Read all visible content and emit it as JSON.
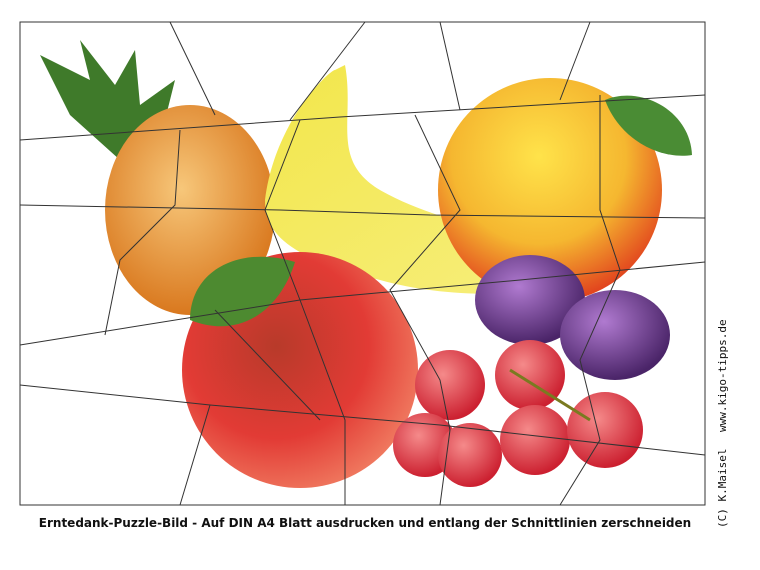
{
  "puzzle": {
    "caption": "Erntedank-Puzzle-Bild - Auf DIN A4 Blatt ausdrucken und entlang der Schnittlinien zerschneiden",
    "credit": {
      "author": "(C) K.Maisel",
      "website": "www.kigo-tipps.de"
    }
  }
}
